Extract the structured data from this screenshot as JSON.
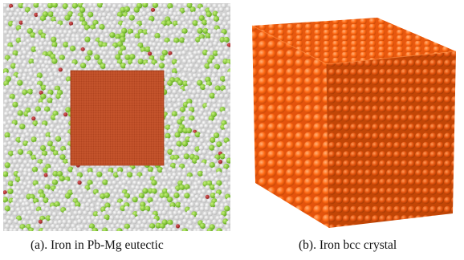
{
  "figure": {
    "panel_a": {
      "caption": "(a). Iron in Pb-Mg eutectic",
      "colors": {
        "iron": "#c8562e",
        "matrix_atom": "#e4e4e4",
        "solute_atom": "#8fd13a",
        "minor_atom": "#b3262b"
      }
    },
    "panel_b": {
      "caption": "(b). Iron bcc crystal",
      "colors": {
        "iron_front": "#ff6a14",
        "iron_side": "#e4530c",
        "iron_top": "#ff7d2a"
      }
    }
  }
}
